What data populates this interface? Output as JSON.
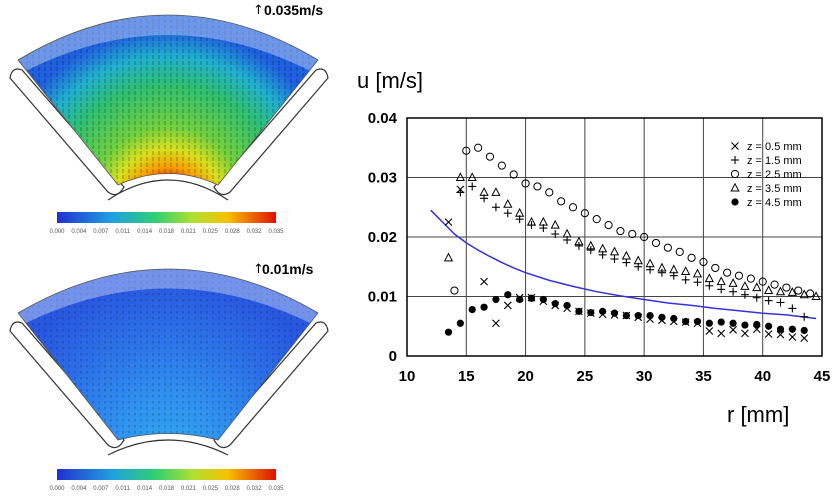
{
  "panel_top": {
    "ref_vector": "0.035m/s",
    "colorbar_ticks": [
      "0.000",
      "0.004",
      "0.007",
      "0.011",
      "0.014",
      "0.018",
      "0.021",
      "0.025",
      "0.028",
      "0.032",
      "0.035"
    ]
  },
  "panel_bottom": {
    "ref_vector": "0.01m/s",
    "colorbar_ticks": [
      "0.000",
      "0.004",
      "0.007",
      "0.011",
      "0.014",
      "0.018",
      "0.021",
      "0.025",
      "0.028",
      "0.032",
      "0.035"
    ]
  },
  "colors": {
    "curve": "#3333dd",
    "marker": "#000000"
  },
  "chart_data": {
    "type": "scatter",
    "ylabel": "u [m/s]",
    "xlabel": "r [mm]",
    "xlim": [
      10,
      45
    ],
    "ylim": [
      0,
      0.04
    ],
    "xticks": [
      "10",
      "15",
      "20",
      "25",
      "30",
      "35",
      "40",
      "45"
    ],
    "yticks": [
      "0",
      "0.01",
      "0.02",
      "0.03",
      "0.04"
    ],
    "grid": true,
    "legend_position": "top-right",
    "series": [
      {
        "name": "z = 0.5 mm",
        "marker": "x",
        "x": [
          13.5,
          14.5,
          16.5,
          17.5,
          18.5,
          19.5,
          20.5,
          21.5,
          22.5,
          23.5,
          24.5,
          25.5,
          26.5,
          27.5,
          28.5,
          29.5,
          30.5,
          31.5,
          32.5,
          33.5,
          34.5,
          35.5,
          36.5,
          37.5,
          38.5,
          39.5,
          40.5,
          41.5,
          42.5,
          43.5
        ],
        "y": [
          0.0225,
          0.028,
          0.0125,
          0.0055,
          0.0085,
          0.0098,
          0.0098,
          0.0092,
          0.0085,
          0.008,
          0.0075,
          0.0072,
          0.007,
          0.0069,
          0.0068,
          0.0065,
          0.0062,
          0.006,
          0.0058,
          0.0057,
          0.0055,
          0.0042,
          0.0038,
          0.0044,
          0.0038,
          0.0045,
          0.0037,
          0.0036,
          0.0032,
          0.003
        ]
      },
      {
        "name": "z = 1.5 mm",
        "marker": "+",
        "x": [
          14.5,
          15.5,
          16.5,
          17.5,
          18.5,
          19.5,
          20.5,
          21.5,
          22.5,
          23.5,
          24.5,
          25.5,
          26.5,
          27.5,
          28.5,
          29.5,
          30.5,
          31.5,
          32.5,
          33.5,
          34.5,
          35.5,
          36.5,
          37.5,
          38.5,
          39.5,
          40.5,
          41.5,
          42.5,
          43.5
        ],
        "y": [
          0.0275,
          0.0285,
          0.0265,
          0.025,
          0.024,
          0.023,
          0.022,
          0.0215,
          0.0205,
          0.0195,
          0.0185,
          0.0178,
          0.017,
          0.0163,
          0.0157,
          0.015,
          0.0145,
          0.014,
          0.0135,
          0.0128,
          0.0124,
          0.0118,
          0.0112,
          0.0108,
          0.0103,
          0.0098,
          0.0093,
          0.009,
          0.008,
          0.0066
        ]
      },
      {
        "name": "z = 2.5 mm",
        "marker": "o",
        "x": [
          14,
          15,
          16,
          17,
          18,
          19,
          20,
          21,
          22,
          23,
          24,
          25,
          26,
          27,
          28,
          29,
          30,
          31,
          32,
          33,
          34,
          35,
          36,
          37,
          38,
          39,
          40,
          41,
          42,
          43,
          44
        ],
        "y": [
          0.011,
          0.0345,
          0.035,
          0.0335,
          0.032,
          0.0305,
          0.029,
          0.0285,
          0.0275,
          0.026,
          0.025,
          0.024,
          0.023,
          0.022,
          0.021,
          0.0205,
          0.02,
          0.019,
          0.0182,
          0.0175,
          0.0165,
          0.0158,
          0.0148,
          0.014,
          0.0135,
          0.013,
          0.0125,
          0.012,
          0.0115,
          0.011,
          0.0105
        ]
      },
      {
        "name": "z = 3.5 mm",
        "marker": "^",
        "x": [
          13.5,
          14.5,
          15.5,
          16.5,
          17.5,
          18.5,
          19.5,
          20.5,
          21.5,
          22.5,
          23.5,
          24.5,
          25.5,
          26.5,
          27.5,
          28.5,
          29.5,
          30.5,
          31.5,
          32.5,
          33.5,
          34.5,
          35.5,
          36.5,
          37.5,
          38.5,
          39.5,
          40.5,
          41.5,
          42.5,
          43.5,
          44.5
        ],
        "y": [
          0.0165,
          0.03,
          0.03,
          0.0275,
          0.0275,
          0.0255,
          0.024,
          0.0225,
          0.0225,
          0.022,
          0.0205,
          0.0192,
          0.0185,
          0.018,
          0.0175,
          0.0168,
          0.016,
          0.0155,
          0.0148,
          0.0145,
          0.0142,
          0.0138,
          0.013,
          0.0125,
          0.0122,
          0.0117,
          0.0115,
          0.011,
          0.0108,
          0.0107,
          0.0103,
          0.01
        ]
      },
      {
        "name": "z = 4.5 mm",
        "marker": "filled-circle",
        "x": [
          13.5,
          14.5,
          15.5,
          16.5,
          17.5,
          18.5,
          19.5,
          20.5,
          21.5,
          22.5,
          23.5,
          24.5,
          25.5,
          26.5,
          27.5,
          28.5,
          29.5,
          30.5,
          31.5,
          32.5,
          33.5,
          34.5,
          35.5,
          36.5,
          37.5,
          38.5,
          39.5,
          40.5,
          41.5,
          42.5,
          43.5
        ],
        "y": [
          0.004,
          0.0055,
          0.0078,
          0.0082,
          0.0095,
          0.0103,
          0.0095,
          0.0097,
          0.0095,
          0.0088,
          0.0085,
          0.0075,
          0.0073,
          0.0075,
          0.0072,
          0.0068,
          0.0068,
          0.0068,
          0.0065,
          0.0063,
          0.0058,
          0.0058,
          0.0055,
          0.0057,
          0.0055,
          0.0052,
          0.0053,
          0.005,
          0.0045,
          0.0045,
          0.0043
        ]
      },
      {
        "name": "",
        "type": "line",
        "x": [
          12,
          13,
          14,
          15,
          16,
          17,
          18,
          19,
          20,
          22,
          24,
          26,
          28,
          30,
          32,
          34,
          36,
          38,
          40,
          42,
          44.5
        ],
        "y": [
          0.0245,
          0.0225,
          0.0205,
          0.019,
          0.0178,
          0.0167,
          0.0157,
          0.0148,
          0.014,
          0.0127,
          0.0117,
          0.0108,
          0.0101,
          0.0095,
          0.0089,
          0.0085,
          0.008,
          0.0076,
          0.0072,
          0.0069,
          0.0063
        ]
      }
    ]
  }
}
